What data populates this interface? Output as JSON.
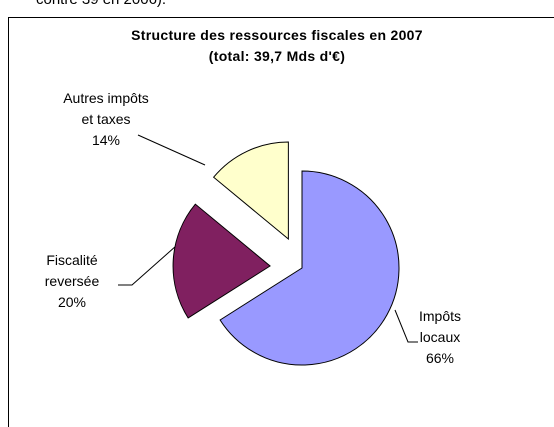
{
  "top_text": "contre 39 en 2006).",
  "chart_data": {
    "type": "pie",
    "title": "Structure des ressources fiscales en 2007",
    "subtitle": "(total: 39,7 Mds d'€)",
    "categories": [
      "Impôts locaux",
      "Fiscalité reversée",
      "Autres impôts et taxes"
    ],
    "values": [
      66,
      20,
      14
    ],
    "value_labels": [
      "66%",
      "20%",
      "14%"
    ],
    "colors": [
      "#9999ff",
      "#802060",
      "#ffffcc"
    ],
    "exploded": [
      false,
      true,
      true
    ]
  }
}
